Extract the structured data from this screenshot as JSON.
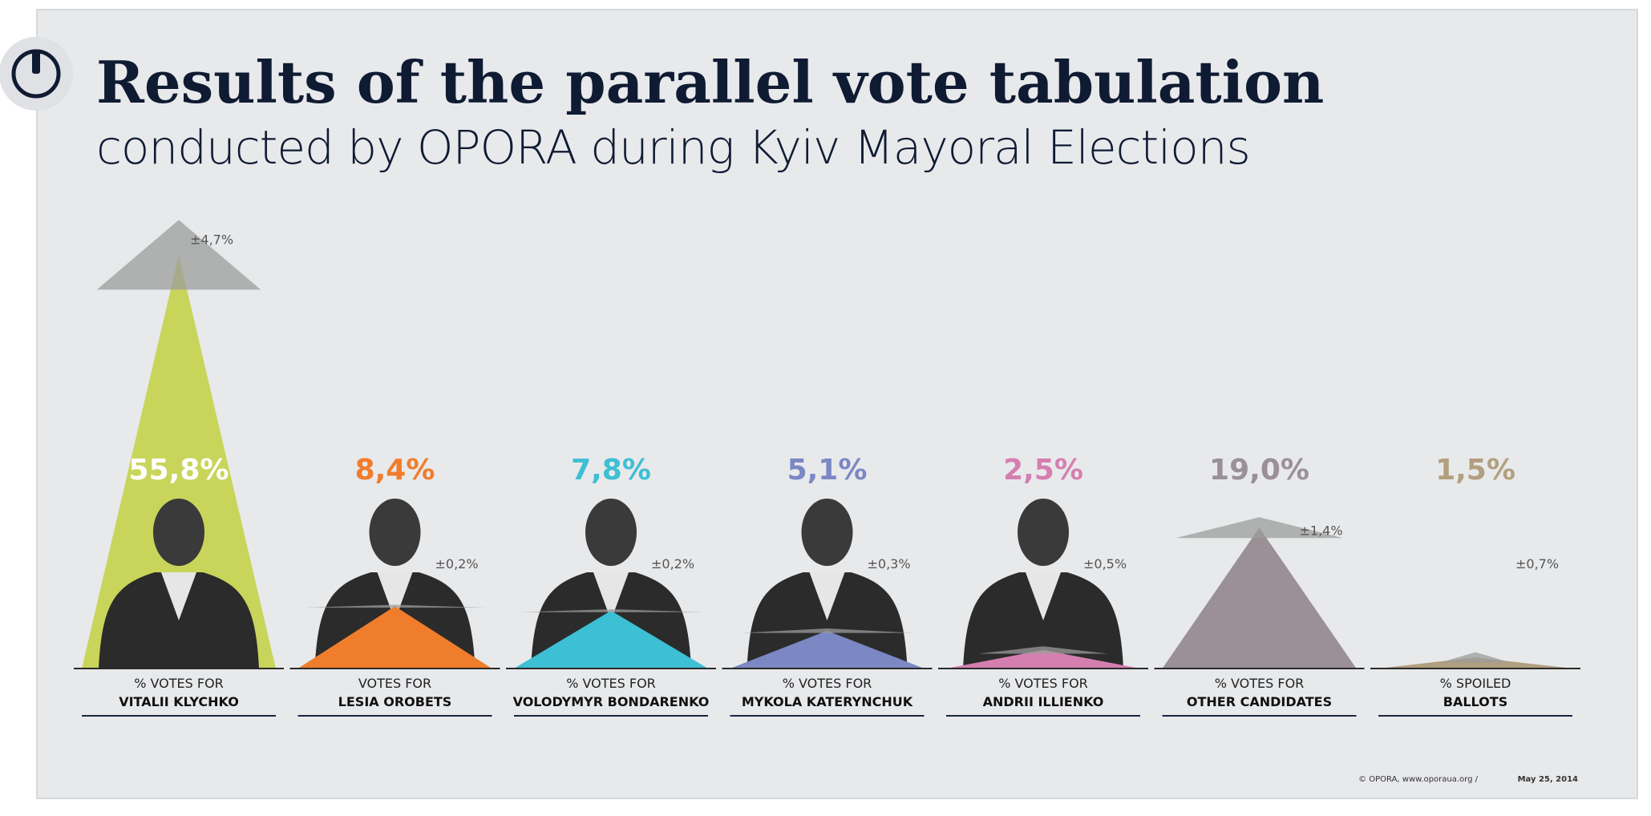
{
  "chart_data": {
    "type": "triangle",
    "title": "Results of the parallel vote tabulation",
    "subtitle": "conducted by OPORA during Kyiv Mayoral Elections",
    "category_prefixes": [
      "% VOTES FOR",
      "VOTES FOR",
      "% VOTES FOR",
      "% VOTES FOR",
      "% VOTES FOR",
      "% VOTES FOR",
      "% SPOILED"
    ],
    "categories": [
      "VITALII KLYCHKO",
      "LESIA OROBETS",
      "VOLODYMYR BONDARENKO",
      "MYKOLA KATERYNCHUK",
      "ANDRII ILLIENKO",
      "OTHER CANDIDATES",
      "BALLOTS"
    ],
    "values": [
      55.8,
      8.4,
      7.8,
      5.1,
      2.5,
      19.0,
      1.5
    ],
    "value_labels": [
      "55,8%",
      "8,4%",
      "7,8%",
      "5,1%",
      "2,5%",
      "19,0%",
      "1,5%"
    ],
    "errors": [
      4.7,
      0.2,
      0.2,
      0.3,
      0.5,
      1.4,
      0.7
    ],
    "error_labels": [
      "±4,7%",
      "±0,2%",
      "±0,2%",
      "±0,3%",
      "±0,5%",
      "±1,4%",
      "±0,7%"
    ],
    "colors": [
      "#c9d55a",
      "#f07d2c",
      "#3dbfd4",
      "#7b88c4",
      "#d57fb0",
      "#9a9096",
      "#b29f7e"
    ],
    "source": "© OPORA, www.oporaua.org /",
    "date": "May 25, 2014"
  }
}
